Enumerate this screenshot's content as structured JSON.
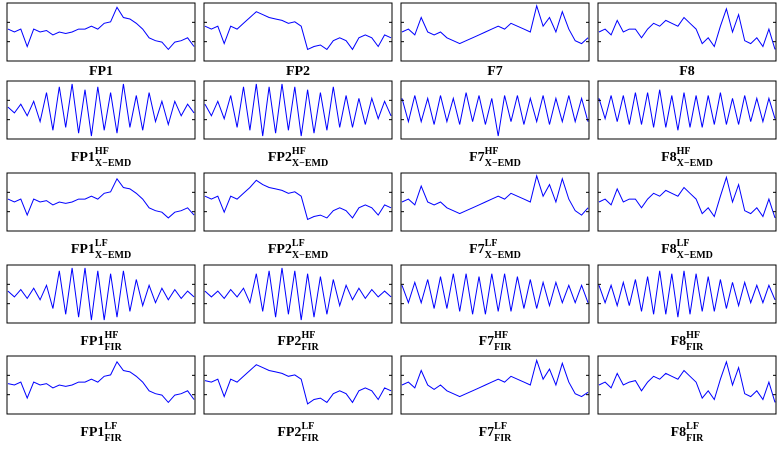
{
  "chart_data": [
    {
      "type": "line",
      "label": {
        "base": "FP1"
      },
      "color": "#0000ff",
      "ylim": [
        -1,
        1
      ],
      "values": [
        0.1,
        0.0,
        0.1,
        -0.5,
        0.1,
        0.0,
        0.05,
        -0.1,
        0.0,
        -0.05,
        0.0,
        0.1,
        0.1,
        0.2,
        0.1,
        0.3,
        0.35,
        0.85,
        0.5,
        0.45,
        0.3,
        0.1,
        -0.2,
        -0.3,
        -0.35,
        -0.6,
        -0.35,
        -0.3,
        -0.2,
        -0.5
      ]
    },
    {
      "type": "line",
      "label": {
        "base": "FP2"
      },
      "color": "#0000ff",
      "ylim": [
        -1,
        1
      ],
      "values": [
        0.2,
        0.1,
        0.2,
        -0.4,
        0.2,
        0.1,
        0.3,
        0.5,
        0.7,
        0.6,
        0.5,
        0.45,
        0.4,
        0.3,
        0.35,
        0.2,
        -0.6,
        -0.5,
        -0.45,
        -0.6,
        -0.3,
        -0.2,
        -0.3,
        -0.6,
        -0.2,
        -0.1,
        -0.2,
        -0.5,
        -0.1,
        -0.2
      ]
    },
    {
      "type": "line",
      "label": {
        "base": "F7"
      },
      "color": "#0000ff",
      "ylim": [
        -1,
        1
      ],
      "values": [
        0.0,
        0.1,
        -0.1,
        0.5,
        0.0,
        -0.1,
        0.0,
        -0.2,
        -0.3,
        -0.4,
        -0.3,
        -0.2,
        -0.1,
        0.0,
        0.1,
        0.2,
        0.1,
        0.3,
        0.2,
        0.1,
        0.0,
        0.9,
        0.2,
        0.5,
        0.0,
        0.7,
        0.1,
        -0.3,
        -0.4,
        -0.2
      ]
    },
    {
      "type": "line",
      "label": {
        "base": "F8"
      },
      "color": "#0000ff",
      "ylim": [
        -1,
        1
      ],
      "values": [
        0.0,
        0.1,
        -0.1,
        0.4,
        0.0,
        0.1,
        0.1,
        -0.2,
        0.1,
        0.3,
        0.2,
        0.4,
        0.3,
        0.2,
        0.5,
        0.3,
        0.1,
        -0.4,
        -0.2,
        -0.5,
        0.2,
        0.8,
        0.0,
        0.6,
        -0.3,
        -0.4,
        -0.2,
        -0.5,
        0.1,
        -0.6
      ]
    },
    {
      "type": "line",
      "label": {
        "base": "FP1",
        "sup": "HF",
        "sub": "X−EMD"
      },
      "color": "#0000ff",
      "ylim": [
        -1,
        1
      ],
      "values": [
        0.1,
        -0.1,
        0.2,
        -0.2,
        0.3,
        -0.4,
        0.6,
        -0.7,
        0.8,
        -0.6,
        0.9,
        -0.8,
        0.7,
        -0.9,
        0.8,
        -0.7,
        0.6,
        -0.8,
        0.9,
        -0.6,
        0.5,
        -0.7,
        0.6,
        -0.4,
        0.3,
        -0.5,
        0.3,
        -0.2,
        0.2,
        -0.1
      ]
    },
    {
      "type": "line",
      "label": {
        "base": "FP2",
        "sup": "HF",
        "sub": "X−EMD"
      },
      "color": "#0000ff",
      "ylim": [
        -1,
        1
      ],
      "values": [
        0.2,
        -0.2,
        0.3,
        -0.3,
        0.5,
        -0.6,
        0.8,
        -0.7,
        0.9,
        -0.9,
        0.8,
        -0.8,
        0.9,
        -0.7,
        0.8,
        -0.9,
        0.7,
        -0.8,
        0.6,
        -0.7,
        0.8,
        -0.6,
        0.5,
        -0.6,
        0.4,
        -0.5,
        0.4,
        -0.3,
        0.3,
        -0.2
      ]
    },
    {
      "type": "line",
      "label": {
        "base": "F7",
        "sup": "HF",
        "sub": "X−EMD"
      },
      "color": "#0000ff",
      "ylim": [
        -1,
        1
      ],
      "values": [
        0.4,
        -0.4,
        0.5,
        -0.4,
        0.4,
        -0.5,
        0.5,
        -0.4,
        0.4,
        -0.5,
        0.6,
        -0.4,
        0.5,
        -0.5,
        0.4,
        -0.9,
        0.5,
        -0.4,
        0.5,
        -0.5,
        0.4,
        -0.4,
        0.5,
        -0.5,
        0.4,
        -0.4,
        0.5,
        -0.4,
        0.4,
        -0.4
      ]
    },
    {
      "type": "line",
      "label": {
        "base": "F8",
        "sup": "HF",
        "sub": "X−EMD"
      },
      "color": "#0000ff",
      "ylim": [
        -1,
        1
      ],
      "values": [
        0.4,
        -0.3,
        0.5,
        -0.4,
        0.5,
        -0.5,
        0.6,
        -0.5,
        0.6,
        -0.6,
        0.7,
        -0.6,
        0.5,
        -0.7,
        0.6,
        -0.6,
        0.5,
        -0.6,
        0.5,
        -0.5,
        0.6,
        -0.5,
        0.4,
        -0.5,
        0.5,
        -0.4,
        0.4,
        -0.4,
        0.4,
        -0.3
      ]
    },
    {
      "type": "line",
      "label": {
        "base": "FP1",
        "sup": "LF",
        "sub": "X−EMD"
      },
      "color": "#0000ff",
      "ylim": [
        -1,
        1
      ],
      "values": [
        0.1,
        0.0,
        0.1,
        -0.45,
        0.1,
        0.0,
        0.05,
        -0.1,
        0.0,
        -0.05,
        0.0,
        0.1,
        0.1,
        0.2,
        0.1,
        0.3,
        0.35,
        0.8,
        0.5,
        0.45,
        0.3,
        0.1,
        -0.2,
        -0.3,
        -0.35,
        -0.55,
        -0.35,
        -0.3,
        -0.2,
        -0.45
      ]
    },
    {
      "type": "line",
      "label": {
        "base": "FP2",
        "sup": "LF",
        "sub": "X−EMD"
      },
      "color": "#0000ff",
      "ylim": [
        -1,
        1
      ],
      "values": [
        0.2,
        0.1,
        0.2,
        -0.35,
        0.2,
        0.1,
        0.3,
        0.5,
        0.75,
        0.6,
        0.5,
        0.45,
        0.4,
        0.3,
        0.35,
        0.2,
        -0.6,
        -0.5,
        -0.45,
        -0.55,
        -0.3,
        -0.2,
        -0.3,
        -0.55,
        -0.2,
        -0.1,
        -0.2,
        -0.45,
        -0.1,
        -0.2
      ]
    },
    {
      "type": "line",
      "label": {
        "base": "F7",
        "sup": "LF",
        "sub": "X−EMD"
      },
      "color": "#0000ff",
      "ylim": [
        -1,
        1
      ],
      "values": [
        0.0,
        0.1,
        -0.1,
        0.55,
        0.0,
        -0.1,
        0.0,
        -0.2,
        -0.3,
        -0.4,
        -0.3,
        -0.2,
        -0.1,
        0.0,
        0.1,
        0.2,
        0.1,
        0.3,
        0.2,
        0.1,
        0.0,
        0.9,
        0.2,
        0.6,
        0.0,
        0.8,
        0.1,
        -0.3,
        -0.45,
        -0.2
      ]
    },
    {
      "type": "line",
      "label": {
        "base": "F8",
        "sup": "LF",
        "sub": "X−EMD"
      },
      "color": "#0000ff",
      "ylim": [
        -1,
        1
      ],
      "values": [
        0.0,
        0.1,
        -0.1,
        0.45,
        0.0,
        0.1,
        0.1,
        -0.2,
        0.1,
        0.3,
        0.2,
        0.4,
        0.3,
        0.2,
        0.5,
        0.3,
        0.1,
        -0.4,
        -0.2,
        -0.5,
        0.2,
        0.85,
        0.0,
        0.6,
        -0.3,
        -0.4,
        -0.2,
        -0.5,
        0.1,
        -0.55
      ]
    },
    {
      "type": "line",
      "label": {
        "base": "FP1",
        "sup": "HF",
        "sub": "FIR"
      },
      "color": "#0000ff",
      "ylim": [
        -1,
        1
      ],
      "values": [
        0.1,
        -0.1,
        0.15,
        -0.15,
        0.2,
        -0.2,
        0.3,
        -0.5,
        0.8,
        -0.7,
        0.9,
        -0.8,
        0.9,
        -0.9,
        0.8,
        -0.9,
        0.7,
        -0.8,
        0.8,
        -0.6,
        0.5,
        -0.4,
        0.3,
        -0.3,
        0.2,
        -0.2,
        0.15,
        -0.15,
        0.1,
        -0.1
      ]
    },
    {
      "type": "line",
      "label": {
        "base": "FP2",
        "sup": "HF",
        "sub": "FIR"
      },
      "color": "#0000ff",
      "ylim": [
        -1,
        1
      ],
      "values": [
        0.1,
        -0.1,
        0.1,
        -0.15,
        0.15,
        -0.1,
        0.2,
        -0.3,
        0.7,
        -0.6,
        0.8,
        -0.8,
        0.9,
        -0.7,
        0.8,
        -0.9,
        0.7,
        -0.8,
        0.6,
        -0.7,
        0.5,
        -0.4,
        0.3,
        -0.2,
        0.2,
        -0.15,
        0.15,
        -0.1,
        0.1,
        -0.1
      ]
    },
    {
      "type": "line",
      "label": {
        "base": "F7",
        "sup": "HF",
        "sub": "FIR"
      },
      "color": "#0000ff",
      "ylim": [
        -1,
        1
      ],
      "values": [
        0.3,
        -0.3,
        0.4,
        -0.3,
        0.5,
        -0.5,
        0.6,
        -0.5,
        0.7,
        -0.6,
        0.7,
        -0.7,
        0.6,
        -0.7,
        0.7,
        -0.6,
        0.7,
        -0.6,
        0.6,
        -0.5,
        0.5,
        -0.5,
        0.4,
        -0.4,
        0.4,
        -0.3,
        0.3,
        -0.3,
        0.3,
        -0.3
      ]
    },
    {
      "type": "line",
      "label": {
        "base": "F8",
        "sup": "HF",
        "sub": "FIR"
      },
      "color": "#0000ff",
      "ylim": [
        -1,
        1
      ],
      "values": [
        0.3,
        -0.3,
        0.3,
        -0.4,
        0.4,
        -0.4,
        0.5,
        -0.6,
        0.6,
        -0.7,
        0.8,
        -0.7,
        0.7,
        -0.8,
        0.8,
        -0.7,
        0.7,
        -0.6,
        0.6,
        -0.6,
        0.5,
        -0.5,
        0.4,
        -0.4,
        0.4,
        -0.3,
        0.3,
        -0.3,
        0.3,
        -0.2
      ]
    },
    {
      "type": "line",
      "label": {
        "base": "FP1",
        "sup": "LF",
        "sub": "FIR"
      },
      "color": "#0000ff",
      "ylim": [
        -1,
        1
      ],
      "values": [
        0.05,
        0.0,
        0.1,
        -0.45,
        0.1,
        0.0,
        0.05,
        -0.1,
        0.0,
        -0.05,
        0.0,
        0.1,
        0.1,
        0.2,
        0.1,
        0.3,
        0.35,
        0.8,
        0.5,
        0.45,
        0.3,
        0.1,
        -0.2,
        -0.3,
        -0.35,
        -0.6,
        -0.35,
        -0.3,
        -0.2,
        -0.5
      ]
    },
    {
      "type": "line",
      "label": {
        "base": "FP2",
        "sup": "LF",
        "sub": "FIR"
      },
      "color": "#0000ff",
      "ylim": [
        -1,
        1
      ],
      "values": [
        0.15,
        0.1,
        0.2,
        -0.4,
        0.2,
        0.1,
        0.3,
        0.5,
        0.7,
        0.6,
        0.5,
        0.45,
        0.4,
        0.3,
        0.35,
        0.2,
        -0.65,
        -0.5,
        -0.45,
        -0.6,
        -0.3,
        -0.2,
        -0.3,
        -0.6,
        -0.2,
        -0.1,
        -0.2,
        -0.5,
        -0.1,
        -0.2
      ]
    },
    {
      "type": "line",
      "label": {
        "base": "F7",
        "sup": "LF",
        "sub": "FIR"
      },
      "color": "#0000ff",
      "ylim": [
        -1,
        1
      ],
      "values": [
        0.0,
        0.1,
        -0.1,
        0.5,
        0.0,
        -0.15,
        0.0,
        -0.2,
        -0.3,
        -0.4,
        -0.3,
        -0.2,
        -0.1,
        0.0,
        0.1,
        0.2,
        0.1,
        0.3,
        0.2,
        0.1,
        0.0,
        0.85,
        0.2,
        0.55,
        0.0,
        0.75,
        0.1,
        -0.3,
        -0.4,
        -0.25
      ]
    },
    {
      "type": "line",
      "label": {
        "base": "F8",
        "sup": "LF",
        "sub": "FIR"
      },
      "color": "#0000ff",
      "ylim": [
        -1,
        1
      ],
      "values": [
        0.0,
        0.1,
        -0.1,
        0.4,
        0.0,
        0.1,
        0.15,
        -0.2,
        0.1,
        0.3,
        0.2,
        0.4,
        0.3,
        0.2,
        0.5,
        0.3,
        0.1,
        -0.45,
        -0.2,
        -0.5,
        0.2,
        0.8,
        0.0,
        0.6,
        -0.3,
        -0.4,
        -0.2,
        -0.5,
        0.1,
        -0.6
      ]
    }
  ]
}
